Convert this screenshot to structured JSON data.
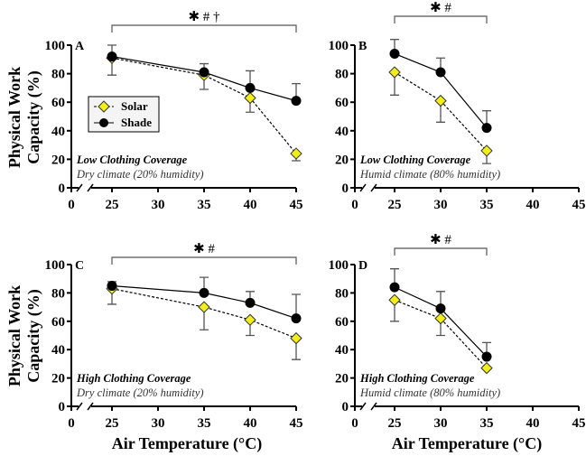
{
  "chart_data": [
    {
      "panel": "A",
      "type": "line",
      "title": "",
      "condition": "Low Clothing Coverage",
      "climate": "Dry climate (20% humidity)",
      "x": [
        25,
        35,
        40,
        45
      ],
      "series": [
        {
          "name": "Solar",
          "values": [
            91,
            79,
            63,
            24
          ],
          "error_ends": [
            79,
            69,
            53,
            19
          ]
        },
        {
          "name": "Shade",
          "values": [
            92,
            81,
            70,
            61
          ],
          "error_ends": [
            100,
            87,
            82,
            73
          ]
        }
      ],
      "significance": "✱ # †",
      "sig_span": [
        25,
        45
      ]
    },
    {
      "panel": "B",
      "type": "line",
      "condition": "Low Clothing Coverage",
      "climate": "Humid climate (80% humidity)",
      "x": [
        25,
        30,
        35
      ],
      "series": [
        {
          "name": "Solar",
          "values": [
            81,
            61,
            26
          ],
          "error_ends": [
            65,
            46,
            17
          ]
        },
        {
          "name": "Shade",
          "values": [
            94,
            81,
            42
          ],
          "error_ends": [
            104,
            91,
            54
          ]
        }
      ],
      "significance": "✱ #",
      "sig_span": [
        25,
        35
      ]
    },
    {
      "panel": "C",
      "type": "line",
      "condition": "High Clothing Coverage",
      "climate": "Dry climate (20% humidity)",
      "x": [
        25,
        35,
        40,
        45
      ],
      "series": [
        {
          "name": "Solar",
          "values": [
            83,
            70,
            61,
            48
          ],
          "error_ends": [
            72,
            54,
            50,
            33
          ]
        },
        {
          "name": "Shade",
          "values": [
            85,
            80,
            73,
            62
          ],
          "error_ends": [
            88,
            91,
            81,
            79
          ]
        }
      ],
      "significance": "✱ #",
      "sig_span": [
        25,
        45
      ]
    },
    {
      "panel": "D",
      "type": "line",
      "condition": "High Clothing Coverage",
      "climate": "Humid climate (80% humidity)",
      "x": [
        25,
        30,
        35
      ],
      "series": [
        {
          "name": "Solar",
          "values": [
            75,
            62,
            27
          ],
          "error_ends": [
            60,
            50,
            27
          ]
        },
        {
          "name": "Shade",
          "values": [
            84,
            69,
            35
          ],
          "error_ends": [
            97,
            81,
            45
          ]
        }
      ],
      "significance": "✱ #",
      "sig_span": [
        25,
        35
      ]
    }
  ],
  "axes": {
    "ylabel_line1": "Physical Work",
    "ylabel_line2": "Capacity (%)",
    "xlabel": "Air Temperature  (°C)",
    "yticks": [
      0,
      20,
      40,
      60,
      80,
      100
    ],
    "ylim": [
      0,
      100
    ],
    "xticks": [
      0,
      25,
      30,
      35,
      40,
      45
    ],
    "xlim": [
      0,
      45
    ],
    "axis_break": true
  },
  "legend": {
    "placement": "center-left of panel A",
    "items": [
      "Solar",
      "Shade"
    ]
  },
  "colors": {
    "solar": "#f2ee1a",
    "shade": "#000000",
    "errorbar": "#555555"
  }
}
